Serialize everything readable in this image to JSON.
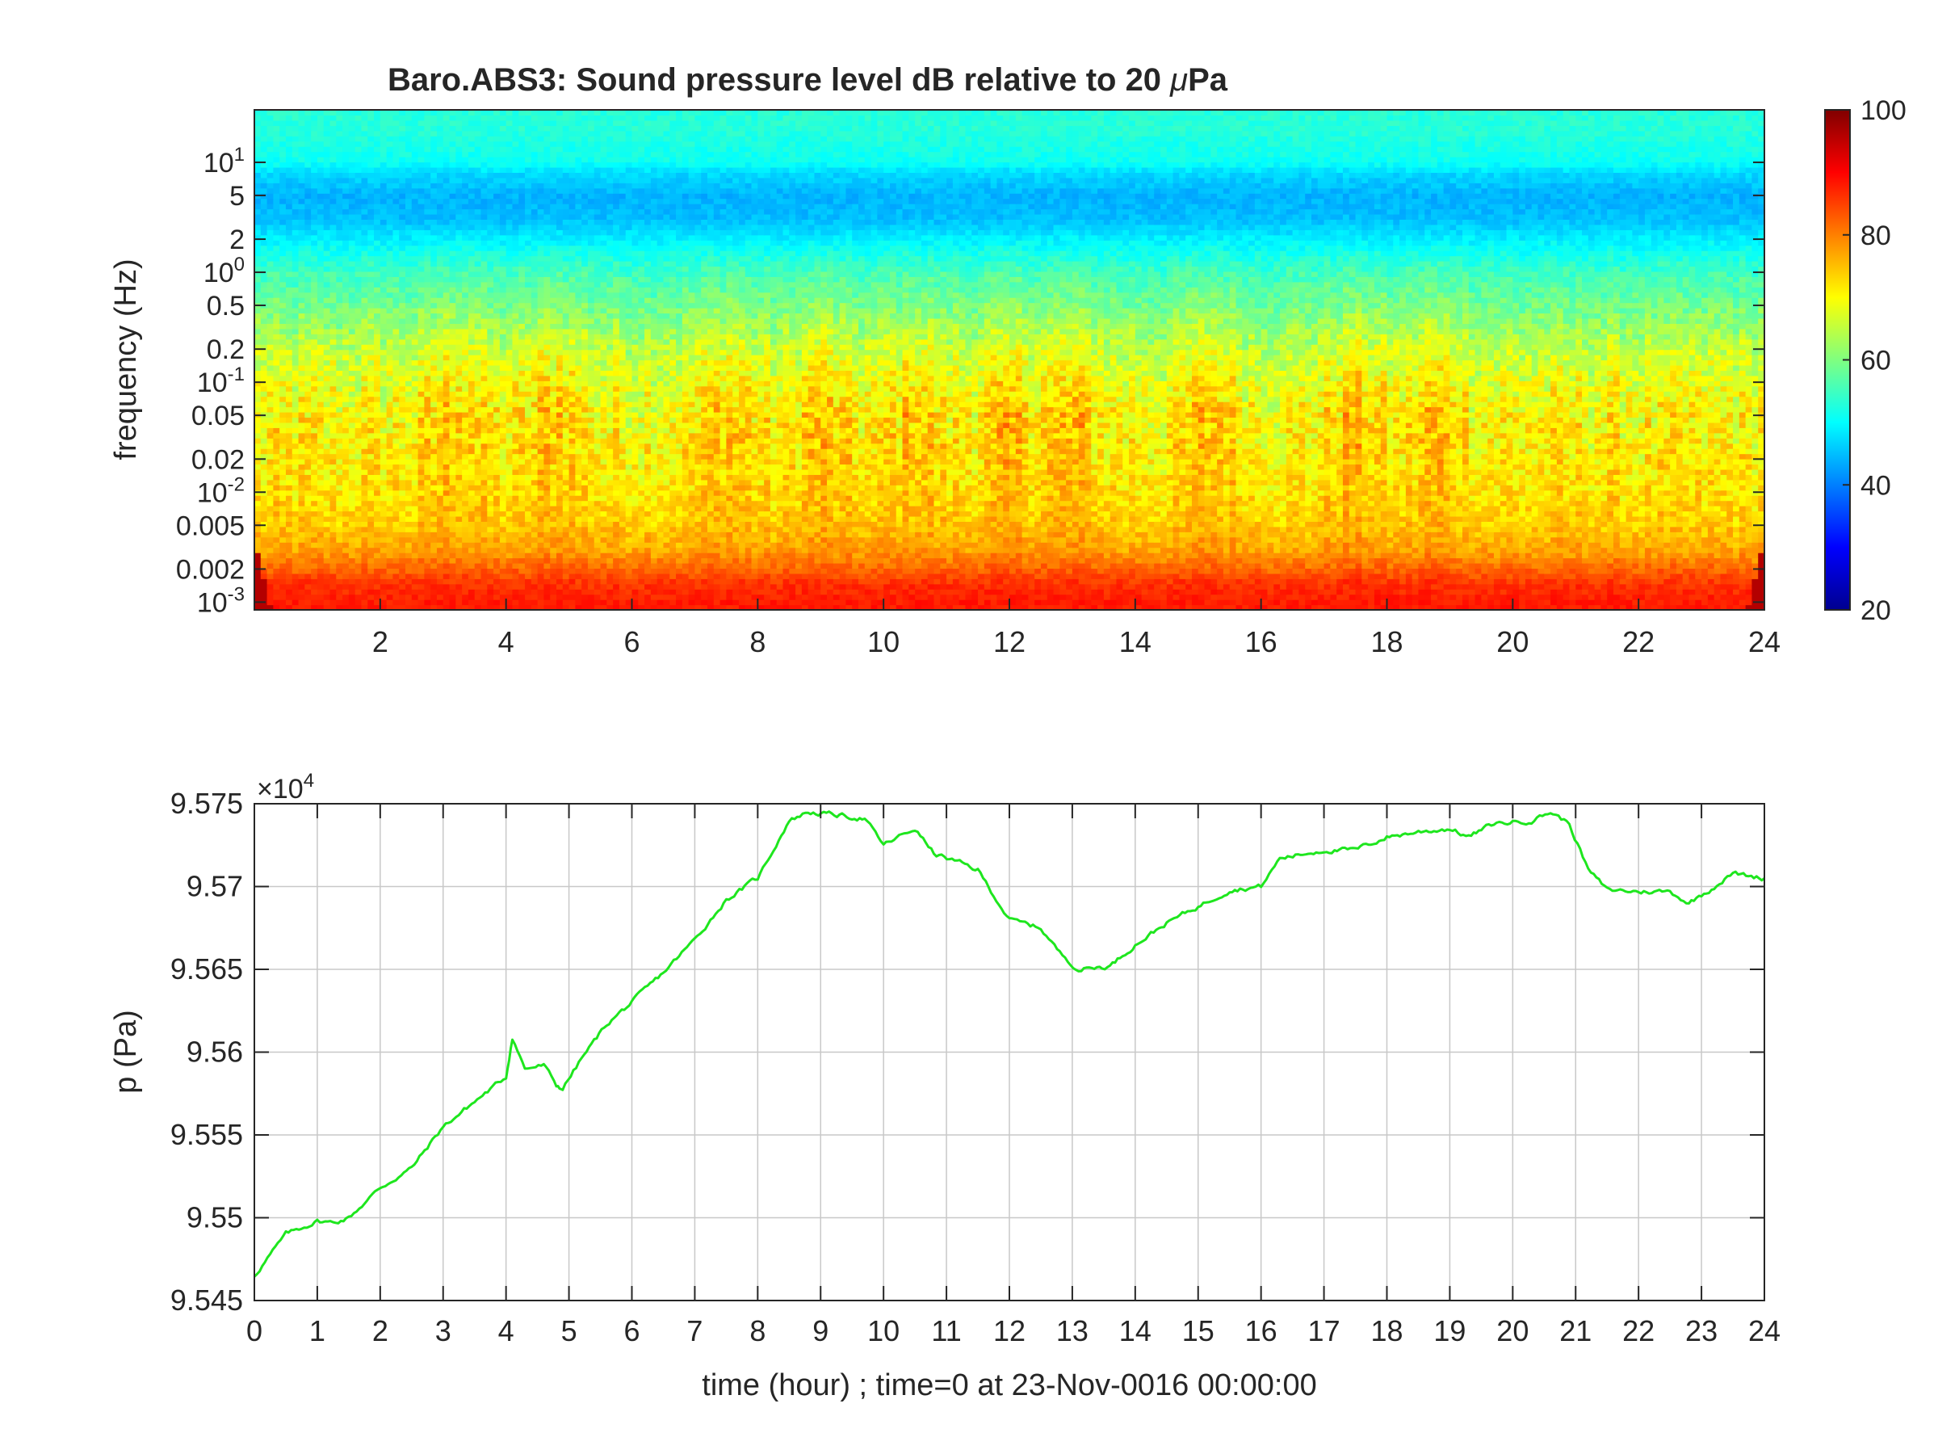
{
  "figure": {
    "title_main": "Baro.ABS3: Sound pressure level dB relative to 20 ",
    "title_mu": "μ",
    "title_tail": "Pa"
  },
  "colors": {
    "line": "#1ee61e",
    "axis": "#262626",
    "grid": "#c8c8c8",
    "background": "#ffffff"
  },
  "chart_data": [
    {
      "type": "heatmap",
      "name": "spectrogram",
      "title": "Baro.ABS3: Sound pressure level dB relative to 20 μPa",
      "ylabel": "frequency (Hz)",
      "xlabel": "",
      "x_unit": "hour",
      "xlim": [
        0,
        24
      ],
      "ylim_hz": [
        0.00085,
        30
      ],
      "y_scale": "log",
      "xticks": [
        2,
        4,
        6,
        8,
        10,
        12,
        14,
        16,
        18,
        20,
        22,
        24
      ],
      "xtick_labels": [
        "2",
        "4",
        "6",
        "8",
        "10",
        "12",
        "14",
        "16",
        "18",
        "20",
        "22",
        "24"
      ],
      "yticks": [
        {
          "value": 10,
          "mantissa": "10",
          "exp": "1"
        },
        {
          "value": 5,
          "label": "5"
        },
        {
          "value": 2,
          "label": "2"
        },
        {
          "value": 1,
          "mantissa": "10",
          "exp": "0"
        },
        {
          "value": 0.5,
          "label": "0.5"
        },
        {
          "value": 0.2,
          "label": "0.2"
        },
        {
          "value": 0.1,
          "mantissa": "10",
          "exp": "-1"
        },
        {
          "value": 0.05,
          "label": "0.05"
        },
        {
          "value": 0.02,
          "label": "0.02"
        },
        {
          "value": 0.01,
          "mantissa": "10",
          "exp": "-2"
        },
        {
          "value": 0.005,
          "label": "0.005"
        },
        {
          "value": 0.002,
          "label": "0.002"
        },
        {
          "value": 0.001,
          "mantissa": "10",
          "exp": "-3"
        }
      ],
      "colorbar": {
        "colormap": "jet",
        "clim": [
          20,
          100
        ],
        "ticks": [
          20,
          40,
          60,
          80,
          100
        ],
        "tick_labels": [
          "20",
          "40",
          "60",
          "80",
          "100"
        ]
      },
      "level_profile_db": [
        {
          "f": 0.001,
          "db": 88
        },
        {
          "f": 0.0015,
          "db": 86
        },
        {
          "f": 0.002,
          "db": 82
        },
        {
          "f": 0.003,
          "db": 77
        },
        {
          "f": 0.005,
          "db": 74
        },
        {
          "f": 0.01,
          "db": 72
        },
        {
          "f": 0.02,
          "db": 71
        },
        {
          "f": 0.05,
          "db": 70
        },
        {
          "f": 0.1,
          "db": 68
        },
        {
          "f": 0.2,
          "db": 65
        },
        {
          "f": 0.5,
          "db": 59
        },
        {
          "f": 1,
          "db": 55
        },
        {
          "f": 2,
          "db": 49
        },
        {
          "f": 3,
          "db": 45
        },
        {
          "f": 5,
          "db": 44
        },
        {
          "f": 8,
          "db": 47
        },
        {
          "f": 10,
          "db": 51
        },
        {
          "f": 20,
          "db": 53
        },
        {
          "f": 30,
          "db": 53
        }
      ],
      "activity_peaks_hour": [
        3.2,
        4.8,
        7.5,
        9.0,
        10.5,
        12.0,
        13.0,
        15.2,
        17.5,
        18.8
      ]
    },
    {
      "type": "line",
      "name": "pressure",
      "xlabel": "time (hour) ; time=0 at 23-Nov-0016 00:00:00",
      "ylabel": "p (Pa)",
      "xlim": [
        0,
        24
      ],
      "ylim": [
        95450,
        95750
      ],
      "grid": true,
      "exponent_label": {
        "prefix": "×10",
        "exp": "4"
      },
      "xticks": [
        0,
        1,
        2,
        3,
        4,
        5,
        6,
        7,
        8,
        9,
        10,
        11,
        12,
        13,
        14,
        15,
        16,
        17,
        18,
        19,
        20,
        21,
        22,
        23,
        24
      ],
      "xtick_labels": [
        "0",
        "1",
        "2",
        "3",
        "4",
        "5",
        "6",
        "7",
        "8",
        "9",
        "10",
        "11",
        "12",
        "13",
        "14",
        "15",
        "16",
        "17",
        "18",
        "19",
        "20",
        "21",
        "22",
        "23",
        "24"
      ],
      "yticks": [
        95450,
        95500,
        95550,
        95600,
        95650,
        95700,
        95750
      ],
      "ytick_labels": [
        "9.545",
        "9.55",
        "9.555",
        "9.56",
        "9.565",
        "9.57",
        "9.575"
      ],
      "series": [
        {
          "x": [
            0,
            0.5,
            1,
            1.25,
            1.5,
            2,
            2.5,
            3,
            3.5,
            4,
            4.1,
            4.3,
            4.6,
            4.8,
            4.9,
            5.2,
            5.6,
            6,
            6.5,
            7,
            7.5,
            8,
            8.5,
            8.8,
            9.3,
            9.7,
            10,
            10.5,
            10.8,
            11.5,
            12,
            12.5,
            12.8,
            13.1,
            13.6,
            14,
            14.5,
            15,
            15.5,
            16,
            16.3,
            17,
            17.5,
            18,
            18.5,
            19,
            19.3,
            19.7,
            20.3,
            20.6,
            20.9,
            21.2,
            21.5,
            22,
            22.5,
            22.8,
            23.2,
            23.5,
            24
          ],
          "y": [
            95465,
            95490,
            95498,
            95497,
            95500,
            95518,
            95530,
            95555,
            95570,
            95585,
            95609,
            95590,
            95592,
            95580,
            95578,
            95596,
            95617,
            95630,
            95648,
            95668,
            95692,
            95705,
            95740,
            95745,
            95743,
            95741,
            95725,
            95735,
            95720,
            95710,
            95680,
            95675,
            95660,
            95650,
            95652,
            95665,
            95678,
            95688,
            95698,
            95700,
            95717,
            95722,
            95722,
            95730,
            95733,
            95735,
            95730,
            95738,
            95740,
            95745,
            95738,
            95710,
            95698,
            95697,
            95697,
            95690,
            95700,
            95708,
            95705
          ]
        }
      ]
    }
  ]
}
